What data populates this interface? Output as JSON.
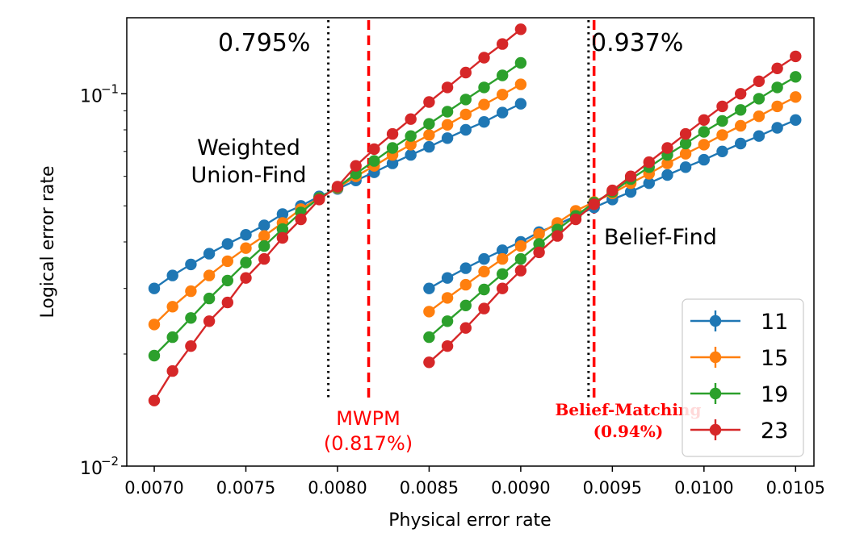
{
  "chart_data": {
    "type": "line",
    "xlabel": "Physical error rate",
    "ylabel": "Logical error rate",
    "xlim": [
      0.00685,
      0.0106
    ],
    "ylim": [
      0.01,
      0.16
    ],
    "yscale": "log",
    "x_ticks": [
      "0.0070",
      "0.0075",
      "0.0080",
      "0.0085",
      "0.0090",
      "0.0095",
      "0.0100",
      "0.0105"
    ],
    "y_ticks": [
      {
        "base": "10",
        "exp": "−1",
        "value": 0.1
      },
      {
        "base": "10",
        "exp": "−2",
        "value": 0.01
      }
    ],
    "legend": {
      "position": "lower-right",
      "labels": [
        "11",
        "15",
        "19",
        "23"
      ]
    },
    "series": [
      {
        "name": "11",
        "color": "#1f77b4",
        "groups": [
          {
            "x": [
              0.007,
              0.0071,
              0.0072,
              0.0073,
              0.0074,
              0.0075,
              0.0076,
              0.0077,
              0.0078,
              0.0079,
              0.008,
              0.0081,
              0.0082,
              0.0083,
              0.0084,
              0.0085,
              0.0086,
              0.0087,
              0.0088,
              0.0089,
              0.009
            ],
            "y": [
              0.03,
              0.0325,
              0.0348,
              0.0372,
              0.0395,
              0.0418,
              0.0443,
              0.0475,
              0.05,
              0.053,
              0.0555,
              0.0585,
              0.0615,
              0.065,
              0.0685,
              0.072,
              0.076,
              0.08,
              0.084,
              0.089,
              0.094
            ]
          },
          {
            "x": [
              0.0085,
              0.0086,
              0.0087,
              0.0088,
              0.0089,
              0.009,
              0.0091,
              0.0092,
              0.0093,
              0.0094,
              0.0095,
              0.0096,
              0.0097,
              0.0098,
              0.0099,
              0.01,
              0.0101,
              0.0102,
              0.0103,
              0.0104,
              0.0105
            ],
            "y": [
              0.03,
              0.032,
              0.034,
              0.036,
              0.038,
              0.04,
              0.0425,
              0.0445,
              0.047,
              0.0495,
              0.052,
              0.0545,
              0.0575,
              0.0605,
              0.0635,
              0.0665,
              0.07,
              0.0735,
              0.077,
              0.081,
              0.085
            ]
          }
        ]
      },
      {
        "name": "15",
        "color": "#ff7f0e",
        "groups": [
          {
            "x": [
              0.007,
              0.0071,
              0.0072,
              0.0073,
              0.0074,
              0.0075,
              0.0076,
              0.0077,
              0.0078,
              0.0079,
              0.008,
              0.0081,
              0.0082,
              0.0083,
              0.0084,
              0.0085,
              0.0086,
              0.0087,
              0.0088,
              0.0089,
              0.009
            ],
            "y": [
              0.024,
              0.0268,
              0.0295,
              0.0325,
              0.0355,
              0.0385,
              0.0415,
              0.045,
              0.049,
              0.0525,
              0.0558,
              0.06,
              0.064,
              0.0685,
              0.073,
              0.0775,
              0.0825,
              0.088,
              0.0935,
              0.0995,
              0.106
            ]
          },
          {
            "x": [
              0.0085,
              0.0086,
              0.0087,
              0.0088,
              0.0089,
              0.009,
              0.0091,
              0.0092,
              0.0093,
              0.0094,
              0.0095,
              0.0096,
              0.0097,
              0.0098,
              0.0099,
              0.01,
              0.0101,
              0.0102,
              0.0103,
              0.0104,
              0.0105
            ],
            "y": [
              0.026,
              0.0283,
              0.0307,
              0.0333,
              0.036,
              0.039,
              0.042,
              0.045,
              0.0485,
              0.0512,
              0.054,
              0.0575,
              0.061,
              0.065,
              0.069,
              0.073,
              0.0775,
              0.082,
              0.087,
              0.0925,
              0.098
            ]
          }
        ]
      },
      {
        "name": "19",
        "color": "#2ca02c",
        "groups": [
          {
            "x": [
              0.007,
              0.0071,
              0.0072,
              0.0073,
              0.0074,
              0.0075,
              0.0076,
              0.0077,
              0.0078,
              0.0079,
              0.008,
              0.0081,
              0.0082,
              0.0083,
              0.0084,
              0.0085,
              0.0086,
              0.0087,
              0.0088,
              0.0089,
              0.009
            ],
            "y": [
              0.0198,
              0.0222,
              0.025,
              0.0282,
              0.0315,
              0.0352,
              0.039,
              0.0433,
              0.048,
              0.0525,
              0.056,
              0.061,
              0.066,
              0.0715,
              0.077,
              0.083,
              0.0895,
              0.0965,
              0.104,
              0.112,
              0.121
            ]
          },
          {
            "x": [
              0.0085,
              0.0086,
              0.0087,
              0.0088,
              0.0089,
              0.009,
              0.0091,
              0.0092,
              0.0093,
              0.0094,
              0.0095,
              0.0096,
              0.0097,
              0.0098,
              0.0099,
              0.01,
              0.0101,
              0.0102,
              0.0103,
              0.0104,
              0.0105
            ],
            "y": [
              0.0222,
              0.0245,
              0.027,
              0.0298,
              0.0328,
              0.036,
              0.0395,
              0.0432,
              0.047,
              0.051,
              0.0545,
              0.059,
              0.0635,
              0.0685,
              0.0735,
              0.079,
              0.0845,
              0.0905,
              0.097,
              0.104,
              0.111
            ]
          }
        ]
      },
      {
        "name": "23",
        "color": "#d62728",
        "groups": [
          {
            "x": [
              0.007,
              0.0071,
              0.0072,
              0.0073,
              0.0074,
              0.0075,
              0.0076,
              0.0077,
              0.0078,
              0.0079,
              0.008,
              0.0081,
              0.0082,
              0.0083,
              0.0084,
              0.0085,
              0.0086,
              0.0087,
              0.0088,
              0.0089,
              0.009
            ],
            "y": [
              0.015,
              0.018,
              0.021,
              0.0245,
              0.0275,
              0.032,
              0.036,
              0.041,
              0.046,
              0.052,
              0.0563,
              0.064,
              0.071,
              0.078,
              0.0855,
              0.095,
              0.104,
              0.114,
              0.125,
              0.136,
              0.149
            ]
          },
          {
            "x": [
              0.0085,
              0.0086,
              0.0087,
              0.0088,
              0.0089,
              0.009,
              0.0091,
              0.0092,
              0.0093,
              0.0094,
              0.0095,
              0.0096,
              0.0097,
              0.0098,
              0.0099,
              0.01,
              0.0101,
              0.0102,
              0.0103,
              0.0104,
              0.0105
            ],
            "y": [
              0.019,
              0.021,
              0.0235,
              0.0265,
              0.03,
              0.0335,
              0.0375,
              0.0415,
              0.046,
              0.0505,
              0.055,
              0.06,
              0.0655,
              0.0715,
              0.078,
              0.085,
              0.0925,
              0.1,
              0.108,
              0.117,
              0.126
            ]
          }
        ]
      }
    ],
    "thresholds": [
      {
        "kind": "dotted",
        "color": "#000000",
        "x": 0.00795
      },
      {
        "kind": "dashed",
        "color": "#ff0000",
        "x": 0.00817
      },
      {
        "kind": "dotted",
        "color": "#000000",
        "x": 0.00937
      },
      {
        "kind": "dashed",
        "color": "#ff0000",
        "x": 0.0094
      }
    ],
    "annotations": {
      "uf_threshold": "0.795%",
      "bf_threshold": "0.937%",
      "weighted_line1": "Weighted",
      "weighted_line2": "Union-Find",
      "belief_find": "Belief-Find",
      "mwpm_line1": "MWPM",
      "mwpm_line2": "(0.817%)",
      "bm_line1": "Belief-Matching",
      "bm_line2": "(0.94%)"
    }
  }
}
